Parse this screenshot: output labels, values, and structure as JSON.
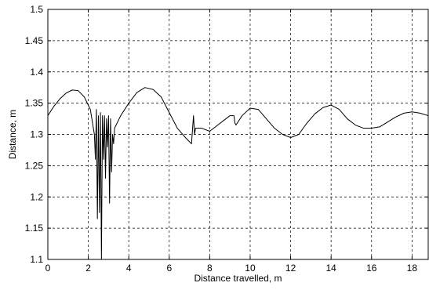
{
  "chart_data": {
    "type": "line",
    "title": "",
    "xlabel": "Distance travelled, m",
    "ylabel": "Distance, m",
    "xlim": [
      0,
      18.8
    ],
    "ylim": [
      1.1,
      1.5
    ],
    "grid": true,
    "xticks": [
      0,
      2,
      4,
      6,
      8,
      10,
      12,
      14,
      16,
      18
    ],
    "xtick_labels": [
      "0",
      "2",
      "4",
      "6",
      "8",
      "10",
      "12",
      "14",
      "16",
      "18"
    ],
    "yticks": [
      1.1,
      1.15,
      1.2,
      1.25,
      1.3,
      1.35,
      1.4,
      1.45,
      1.5
    ],
    "ytick_labels": [
      "1.1",
      "1.15",
      "1.2",
      "1.25",
      "1.3",
      "1.35",
      "1.4",
      "1.45",
      "1.5"
    ],
    "line_color": "#000000",
    "grid_color": "#000000",
    "series": [
      {
        "name": "",
        "x": [
          0.0,
          0.3,
          0.6,
          0.9,
          1.2,
          1.5,
          1.8,
          2.1,
          2.3,
          2.35,
          2.4,
          2.45,
          2.5,
          2.55,
          2.6,
          2.65,
          2.7,
          2.75,
          2.8,
          2.85,
          2.9,
          2.95,
          3.0,
          3.05,
          3.1,
          3.15,
          3.2,
          3.25,
          3.3,
          3.6,
          4.0,
          4.4,
          4.8,
          5.2,
          5.6,
          6.0,
          6.4,
          6.8,
          7.1,
          7.2,
          7.25,
          7.3,
          7.6,
          8.0,
          8.4,
          8.8,
          9.0,
          9.2,
          9.25,
          9.3,
          9.6,
          10.0,
          10.4,
          10.8,
          11.2,
          11.6,
          12.0,
          12.4,
          12.8,
          13.2,
          13.6,
          14.0,
          14.4,
          14.8,
          15.2,
          15.6,
          16.0,
          16.4,
          16.8,
          17.2,
          17.6,
          18.0,
          18.4,
          18.8
        ],
        "y": [
          1.33,
          1.345,
          1.357,
          1.366,
          1.371,
          1.37,
          1.36,
          1.34,
          1.3,
          1.26,
          1.34,
          1.165,
          1.33,
          1.175,
          1.335,
          1.1,
          1.33,
          1.26,
          1.33,
          1.23,
          1.325,
          1.28,
          1.33,
          1.19,
          1.325,
          1.24,
          1.3,
          1.285,
          1.31,
          1.33,
          1.35,
          1.367,
          1.375,
          1.372,
          1.36,
          1.335,
          1.31,
          1.295,
          1.285,
          1.33,
          1.3,
          1.31,
          1.31,
          1.305,
          1.315,
          1.325,
          1.33,
          1.33,
          1.318,
          1.315,
          1.33,
          1.342,
          1.34,
          1.325,
          1.31,
          1.3,
          1.295,
          1.3,
          1.318,
          1.333,
          1.343,
          1.347,
          1.34,
          1.325,
          1.315,
          1.31,
          1.31,
          1.312,
          1.32,
          1.328,
          1.334,
          1.336,
          1.334,
          1.33
        ]
      }
    ]
  }
}
